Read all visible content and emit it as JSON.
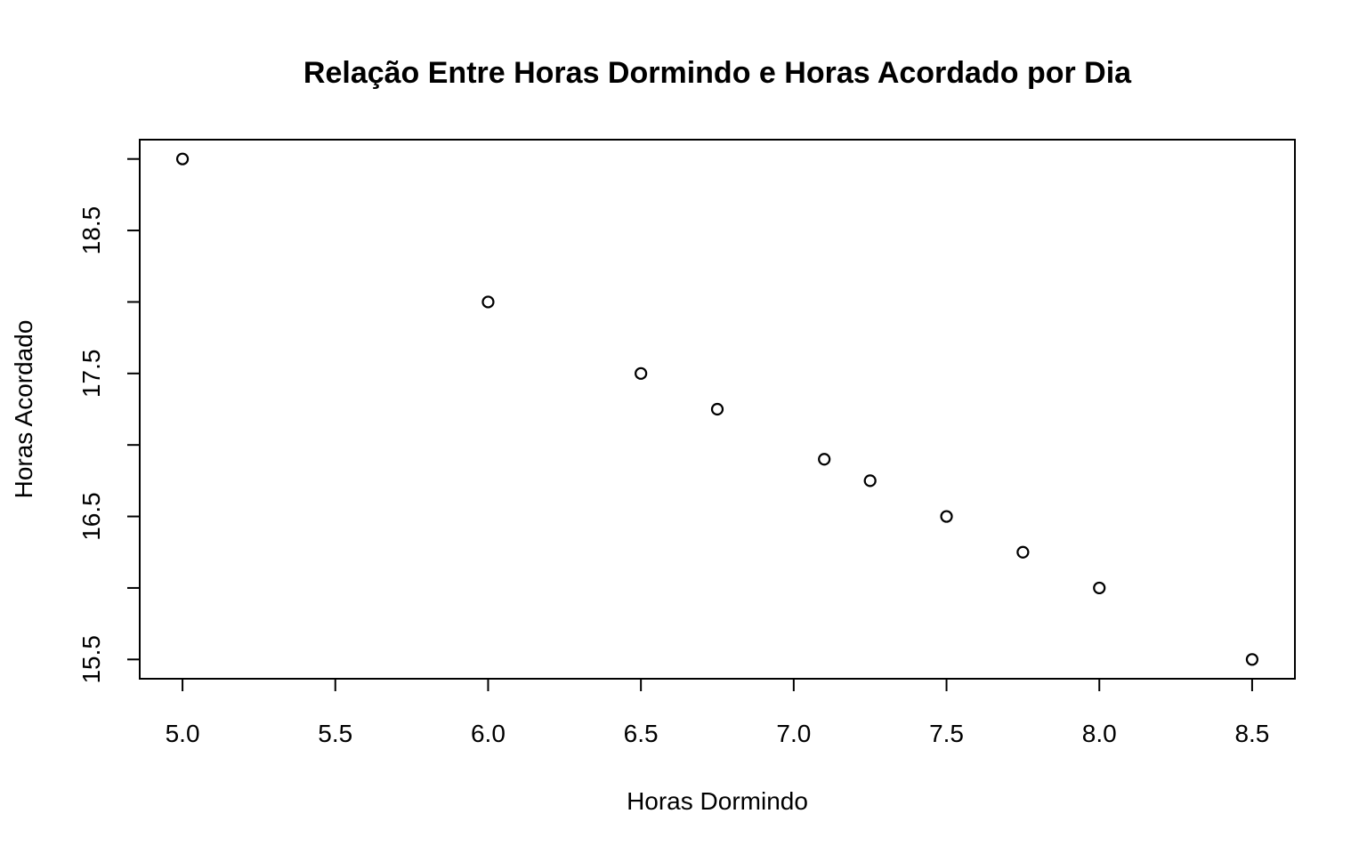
{
  "chart_data": {
    "type": "scatter",
    "title": "Relação Entre Horas Dormindo e Horas Acordado por Dia",
    "xlabel": "Horas Dormindo",
    "ylabel": "Horas Acordado",
    "x": [
      5.0,
      6.0,
      6.5,
      6.75,
      7.1,
      7.25,
      7.5,
      7.75,
      8.0,
      8.5
    ],
    "y": [
      19.0,
      18.0,
      17.5,
      17.25,
      16.9,
      16.75,
      16.5,
      16.25,
      16.0,
      15.5
    ],
    "xlim": [
      4.86,
      8.64
    ],
    "ylim": [
      15.365,
      19.135
    ],
    "xticks": [
      5.0,
      5.5,
      6.0,
      6.5,
      7.0,
      7.5,
      8.0,
      8.5
    ],
    "xtick_labels": [
      "5.0",
      "5.5",
      "6.0",
      "6.5",
      "7.0",
      "7.5",
      "8.0",
      "8.5"
    ],
    "yticks": [
      15.5,
      16.0,
      16.5,
      17.0,
      17.5,
      18.0,
      18.5,
      19.0
    ],
    "ytick_labels": [
      "15.5",
      "",
      "16.5",
      "",
      "17.5",
      "",
      "18.5",
      ""
    ],
    "grid": false,
    "marker": "open-circle",
    "color": "#000000"
  }
}
